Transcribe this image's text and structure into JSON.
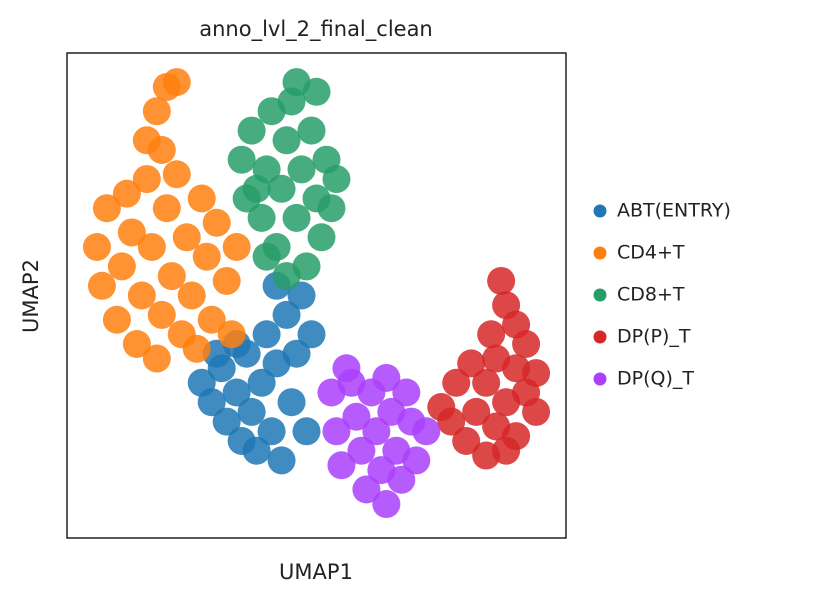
{
  "chart_data": {
    "type": "scatter",
    "title": "anno_lvl_2_final_clean",
    "x_label": "UMAP1",
    "y_label": "UMAP2",
    "xlim": [
      0,
      10
    ],
    "ylim": [
      0,
      10
    ],
    "legend": "right",
    "series": [
      {
        "name": "ABT(ENTRY)",
        "color": "#1f77b4",
        "x": [
          2.7,
          2.9,
          3.1,
          3.2,
          3.4,
          3.5,
          3.6,
          3.7,
          3.8,
          3.9,
          4.0,
          4.1,
          4.2,
          4.3,
          4.4,
          4.5,
          4.6,
          4.7,
          4.8,
          4.9,
          3.4,
          4.2,
          3.0
        ],
        "y": [
          3.2,
          2.8,
          3.5,
          2.4,
          3.0,
          2.0,
          3.8,
          2.6,
          1.8,
          3.2,
          4.2,
          2.2,
          3.6,
          1.6,
          4.6,
          2.8,
          3.8,
          5.0,
          2.2,
          4.2,
          4.0,
          5.2,
          3.8
        ]
      },
      {
        "name": "CD4+T",
        "color": "#ff7f0e",
        "x": [
          0.6,
          0.7,
          0.8,
          1.0,
          1.1,
          1.2,
          1.3,
          1.4,
          1.5,
          1.6,
          1.7,
          1.8,
          1.9,
          2.0,
          2.1,
          2.2,
          2.3,
          2.4,
          2.5,
          2.6,
          2.7,
          2.8,
          2.9,
          3.0,
          3.2,
          3.3,
          3.4,
          1.6,
          1.8,
          2.0,
          2.2,
          1.9
        ],
        "y": [
          6.0,
          5.2,
          6.8,
          4.5,
          5.6,
          7.1,
          6.3,
          4.0,
          5.0,
          7.4,
          6.0,
          3.7,
          4.6,
          6.8,
          5.4,
          7.5,
          4.2,
          6.2,
          5.0,
          3.9,
          7.0,
          5.8,
          4.5,
          6.5,
          5.3,
          4.2,
          6.0,
          8.2,
          8.8,
          9.3,
          9.4,
          8.0
        ]
      },
      {
        "name": "CD8+T",
        "color": "#279e68",
        "x": [
          3.5,
          3.6,
          3.7,
          3.9,
          4.0,
          4.1,
          4.2,
          4.3,
          4.4,
          4.5,
          4.6,
          4.7,
          4.8,
          4.9,
          5.0,
          5.1,
          5.2,
          5.3,
          5.4,
          4.4,
          4.0,
          3.8,
          5.0,
          4.6
        ],
        "y": [
          7.8,
          7.0,
          8.4,
          6.6,
          7.6,
          8.8,
          6.0,
          7.2,
          8.2,
          9.0,
          6.6,
          7.6,
          5.6,
          8.4,
          7.0,
          6.2,
          7.8,
          6.8,
          7.4,
          5.4,
          5.8,
          7.2,
          9.2,
          9.4
        ]
      },
      {
        "name": "DP(P)_T",
        "color": "#d62728",
        "x": [
          8.7,
          8.8,
          9.0,
          8.5,
          9.2,
          8.6,
          9.0,
          9.4,
          8.4,
          9.2,
          8.8,
          8.2,
          9.4,
          8.6,
          9.0,
          8.0,
          7.7,
          7.5,
          8.4,
          8.8,
          7.8,
          8.1
        ],
        "y": [
          5.3,
          4.8,
          4.4,
          4.2,
          4.0,
          3.7,
          3.5,
          3.4,
          3.2,
          3.0,
          2.8,
          2.6,
          2.6,
          2.3,
          2.1,
          2.0,
          2.4,
          2.7,
          1.7,
          1.8,
          3.2,
          3.6
        ]
      },
      {
        "name": "DP(Q)_T",
        "color": "#aa40fc",
        "x": [
          5.3,
          5.4,
          5.5,
          5.7,
          5.8,
          5.9,
          6.0,
          6.1,
          6.2,
          6.3,
          6.4,
          6.5,
          6.6,
          6.7,
          6.9,
          7.0,
          7.2,
          5.6,
          6.4,
          6.8
        ],
        "y": [
          3.0,
          2.2,
          1.5,
          3.2,
          2.5,
          1.8,
          1.0,
          3.0,
          2.2,
          1.4,
          0.7,
          2.6,
          1.8,
          1.2,
          2.4,
          1.6,
          2.2,
          3.5,
          3.3,
          3.0
        ]
      }
    ]
  }
}
